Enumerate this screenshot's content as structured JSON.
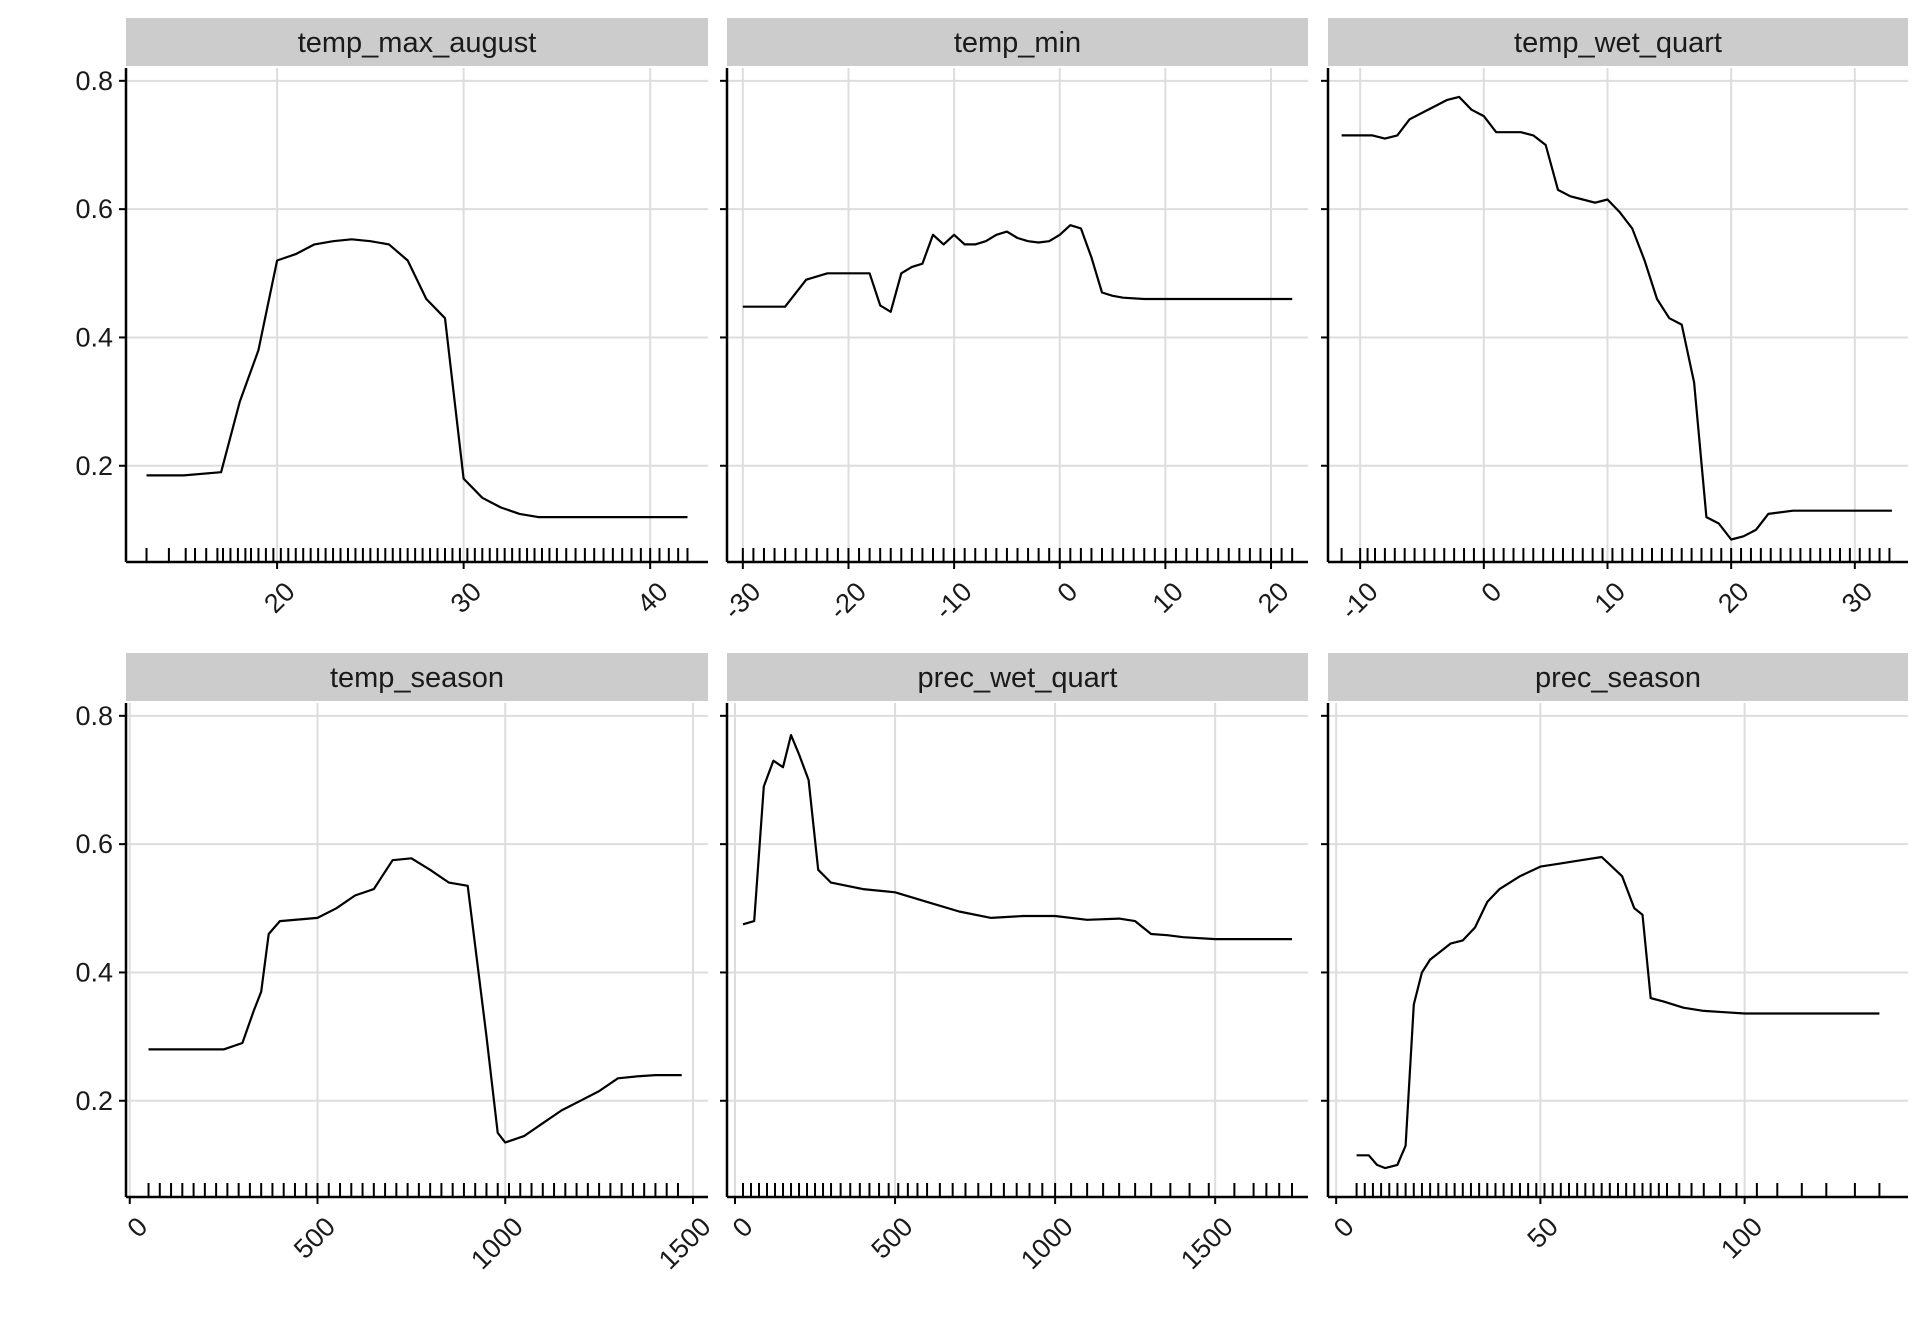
{
  "chart_data": {
    "type": "line",
    "layout": "facet-grid",
    "ylim": [
      0.05,
      0.82
    ],
    "y_ticks": [
      0.2,
      0.4,
      0.6,
      0.8
    ],
    "y_tick_labels": [
      "0.2",
      "0.4",
      "0.6",
      "0.8"
    ],
    "grid": true,
    "line_color": "#000000",
    "strip_color": "#cccccc",
    "panels": [
      {
        "title": "temp_max_august",
        "xlim": [
          11.9,
          43.1
        ],
        "x_ticks": [
          20,
          30,
          40
        ],
        "x_tick_labels": [
          "20",
          "30",
          "40"
        ],
        "x": [
          13,
          15,
          17,
          18,
          19,
          20,
          21,
          22,
          23,
          24,
          25,
          26,
          27,
          28,
          29,
          30,
          31,
          32,
          33,
          34,
          36,
          38,
          40,
          42
        ],
        "y": [
          0.185,
          0.185,
          0.19,
          0.3,
          0.38,
          0.52,
          0.53,
          0.545,
          0.55,
          0.553,
          0.55,
          0.545,
          0.52,
          0.46,
          0.43,
          0.18,
          0.15,
          0.135,
          0.125,
          0.12,
          0.12,
          0.12,
          0.12,
          0.12
        ],
        "rug": [
          13,
          14.2,
          15.1,
          15.6,
          16.2,
          16.8,
          17.1,
          17.5,
          17.9,
          18.3,
          18.6,
          19,
          19.4,
          19.8,
          20.2,
          20.6,
          21,
          21.4,
          21.8,
          22.2,
          22.6,
          23,
          23.4,
          23.8,
          24.2,
          24.6,
          25,
          25.4,
          25.8,
          26.2,
          26.6,
          27,
          27.4,
          27.8,
          28.2,
          28.6,
          29,
          29.4,
          29.8,
          30.2,
          30.6,
          31,
          31.4,
          31.8,
          32.2,
          32.6,
          33,
          33.4,
          33.8,
          34.2,
          34.6,
          35,
          35.5,
          36,
          36.5,
          37,
          37.5,
          38,
          38.5,
          39,
          39.5,
          40,
          40.5,
          41,
          41.5,
          42
        ]
      },
      {
        "title": "temp_min",
        "xlim": [
          -31.5,
          23.5
        ],
        "x_ticks": [
          -30,
          -20,
          -10,
          0,
          10,
          20
        ],
        "x_tick_labels": [
          "-30",
          "-20",
          "-10",
          "0",
          "10",
          "20"
        ],
        "x": [
          -30,
          -28,
          -26,
          -24,
          -22,
          -20,
          -18,
          -17,
          -16,
          -15,
          -14,
          -13,
          -12,
          -11,
          -10,
          -9,
          -8,
          -7,
          -6,
          -5,
          -4,
          -3,
          -2,
          -1,
          0,
          1,
          2,
          3,
          4,
          5,
          6,
          8,
          10,
          15,
          22
        ],
        "y": [
          0.448,
          0.448,
          0.448,
          0.49,
          0.5,
          0.5,
          0.5,
          0.45,
          0.44,
          0.5,
          0.51,
          0.515,
          0.56,
          0.545,
          0.56,
          0.545,
          0.545,
          0.55,
          0.56,
          0.565,
          0.555,
          0.55,
          0.548,
          0.55,
          0.56,
          0.575,
          0.57,
          0.525,
          0.47,
          0.465,
          0.462,
          0.46,
          0.46,
          0.46,
          0.46
        ],
        "rug": [
          -30,
          -29,
          -28,
          -27,
          -26,
          -25,
          -24,
          -23,
          -22,
          -21,
          -20,
          -19,
          -18,
          -17,
          -16,
          -15,
          -14,
          -13,
          -12,
          -11,
          -10,
          -9,
          -8,
          -7,
          -6,
          -5,
          -4,
          -3,
          -2,
          -1,
          0,
          1,
          2,
          3,
          4,
          5,
          6,
          7,
          8,
          9,
          10,
          11,
          12,
          13,
          14,
          15,
          16,
          17,
          18,
          19,
          20,
          21,
          22
        ]
      },
      {
        "title": "temp_wet_quart",
        "xlim": [
          -12.6,
          34.3
        ],
        "x_ticks": [
          -10,
          0,
          10,
          20,
          30
        ],
        "x_tick_labels": [
          "-10",
          "0",
          "10",
          "20",
          "30"
        ],
        "x": [
          -11.5,
          -9,
          -8,
          -7,
          -6,
          -5,
          -4,
          -3,
          -2,
          -1,
          0,
          1,
          2,
          3,
          4,
          5,
          6,
          7,
          8,
          9,
          10,
          11,
          12,
          13,
          14,
          15,
          16,
          17,
          18,
          19,
          20,
          21,
          22,
          23,
          25,
          33
        ],
        "y": [
          0.715,
          0.715,
          0.71,
          0.715,
          0.74,
          0.75,
          0.76,
          0.77,
          0.775,
          0.755,
          0.745,
          0.72,
          0.72,
          0.72,
          0.715,
          0.7,
          0.63,
          0.62,
          0.615,
          0.61,
          0.615,
          0.595,
          0.57,
          0.52,
          0.46,
          0.43,
          0.42,
          0.33,
          0.12,
          0.11,
          0.085,
          0.09,
          0.1,
          0.125,
          0.13,
          0.13
        ],
        "rug": [
          -11.5,
          -10,
          -9.4,
          -8.8,
          -8,
          -7.2,
          -6.4,
          -5.6,
          -4.8,
          -4,
          -3.2,
          -2.4,
          -1.6,
          -0.8,
          0,
          0.8,
          1.6,
          2.4,
          3.2,
          4,
          4.8,
          5.6,
          6.4,
          7.2,
          8,
          8.8,
          9.6,
          10.4,
          11.2,
          12,
          12.8,
          13.6,
          14.4,
          15.2,
          16,
          16.8,
          17.6,
          18.4,
          19.2,
          20,
          20.8,
          21.6,
          22.4,
          23.2,
          24,
          24.8,
          25.6,
          26.4,
          27.2,
          28,
          28.8,
          29.6,
          30.4,
          31.2,
          32,
          32.8
        ]
      },
      {
        "title": "temp_season",
        "xlim": [
          -10,
          1540
        ],
        "x_ticks": [
          0,
          500,
          1000,
          1500
        ],
        "x_tick_labels": [
          "0",
          "500",
          "1000",
          "1500"
        ],
        "x": [
          50,
          250,
          300,
          330,
          350,
          370,
          400,
          500,
          550,
          600,
          650,
          700,
          750,
          800,
          850,
          900,
          950,
          980,
          1000,
          1050,
          1100,
          1150,
          1200,
          1250,
          1300,
          1350,
          1400,
          1470
        ],
        "y": [
          0.28,
          0.28,
          0.29,
          0.34,
          0.37,
          0.46,
          0.48,
          0.485,
          0.5,
          0.52,
          0.53,
          0.575,
          0.578,
          0.56,
          0.54,
          0.535,
          0.3,
          0.15,
          0.135,
          0.145,
          0.165,
          0.185,
          0.2,
          0.215,
          0.235,
          0.238,
          0.24,
          0.24
        ],
        "rug": [
          50,
          80,
          110,
          140,
          170,
          200,
          230,
          260,
          290,
          320,
          350,
          380,
          410,
          440,
          470,
          500,
          530,
          560,
          590,
          620,
          650,
          680,
          710,
          740,
          770,
          800,
          830,
          860,
          890,
          920,
          950,
          980,
          1010,
          1040,
          1070,
          1100,
          1130,
          1160,
          1190,
          1220,
          1250,
          1280,
          1310,
          1340,
          1370,
          1400,
          1430,
          1460
        ]
      },
      {
        "title": "prec_wet_quart",
        "xlim": [
          -25,
          1790
        ],
        "x_ticks": [
          0,
          500,
          1000,
          1500
        ],
        "x_tick_labels": [
          "0",
          "500",
          "1000",
          "1500"
        ],
        "x": [
          25,
          60,
          90,
          120,
          150,
          175,
          200,
          230,
          260,
          300,
          400,
          500,
          600,
          700,
          800,
          900,
          1000,
          1100,
          1200,
          1250,
          1300,
          1350,
          1400,
          1500,
          1600,
          1740
        ],
        "y": [
          0.475,
          0.48,
          0.69,
          0.73,
          0.72,
          0.77,
          0.74,
          0.7,
          0.56,
          0.54,
          0.53,
          0.525,
          0.51,
          0.495,
          0.485,
          0.488,
          0.488,
          0.482,
          0.484,
          0.48,
          0.46,
          0.458,
          0.455,
          0.452,
          0.452,
          0.452
        ],
        "rug": [
          25,
          50,
          75,
          100,
          125,
          150,
          175,
          200,
          225,
          250,
          275,
          300,
          330,
          360,
          390,
          420,
          450,
          480,
          510,
          540,
          570,
          600,
          640,
          680,
          720,
          760,
          800,
          840,
          880,
          920,
          960,
          1000,
          1050,
          1100,
          1150,
          1200,
          1250,
          1300,
          1360,
          1420,
          1480,
          1560,
          1620,
          1660,
          1700,
          1740
        ]
      },
      {
        "title": "prec_season",
        "xlim": [
          -2,
          140
        ],
        "x_ticks": [
          0,
          50,
          100
        ],
        "x_tick_labels": [
          "0",
          "50",
          "100"
        ],
        "x": [
          5,
          8,
          10,
          12,
          15,
          17,
          19,
          21,
          23,
          25,
          28,
          31,
          34,
          37,
          40,
          45,
          50,
          55,
          60,
          65,
          70,
          73,
          75,
          77,
          80,
          85,
          90,
          95,
          100,
          120,
          133
        ],
        "y": [
          0.115,
          0.115,
          0.1,
          0.095,
          0.1,
          0.13,
          0.35,
          0.4,
          0.42,
          0.43,
          0.445,
          0.45,
          0.47,
          0.51,
          0.53,
          0.55,
          0.565,
          0.57,
          0.575,
          0.58,
          0.55,
          0.5,
          0.49,
          0.36,
          0.355,
          0.345,
          0.34,
          0.338,
          0.336,
          0.336,
          0.336
        ],
        "rug": [
          5,
          7,
          9,
          11,
          13,
          15,
          17,
          19,
          21,
          23,
          25,
          27,
          29,
          31,
          33,
          35,
          37,
          39,
          41,
          43,
          45,
          47,
          49,
          51,
          53,
          55,
          57,
          59,
          61,
          63,
          65,
          67,
          69,
          71,
          73,
          75,
          77,
          79,
          81,
          84,
          87,
          90,
          94,
          98,
          103,
          108,
          114,
          120,
          127,
          133
        ]
      }
    ]
  }
}
